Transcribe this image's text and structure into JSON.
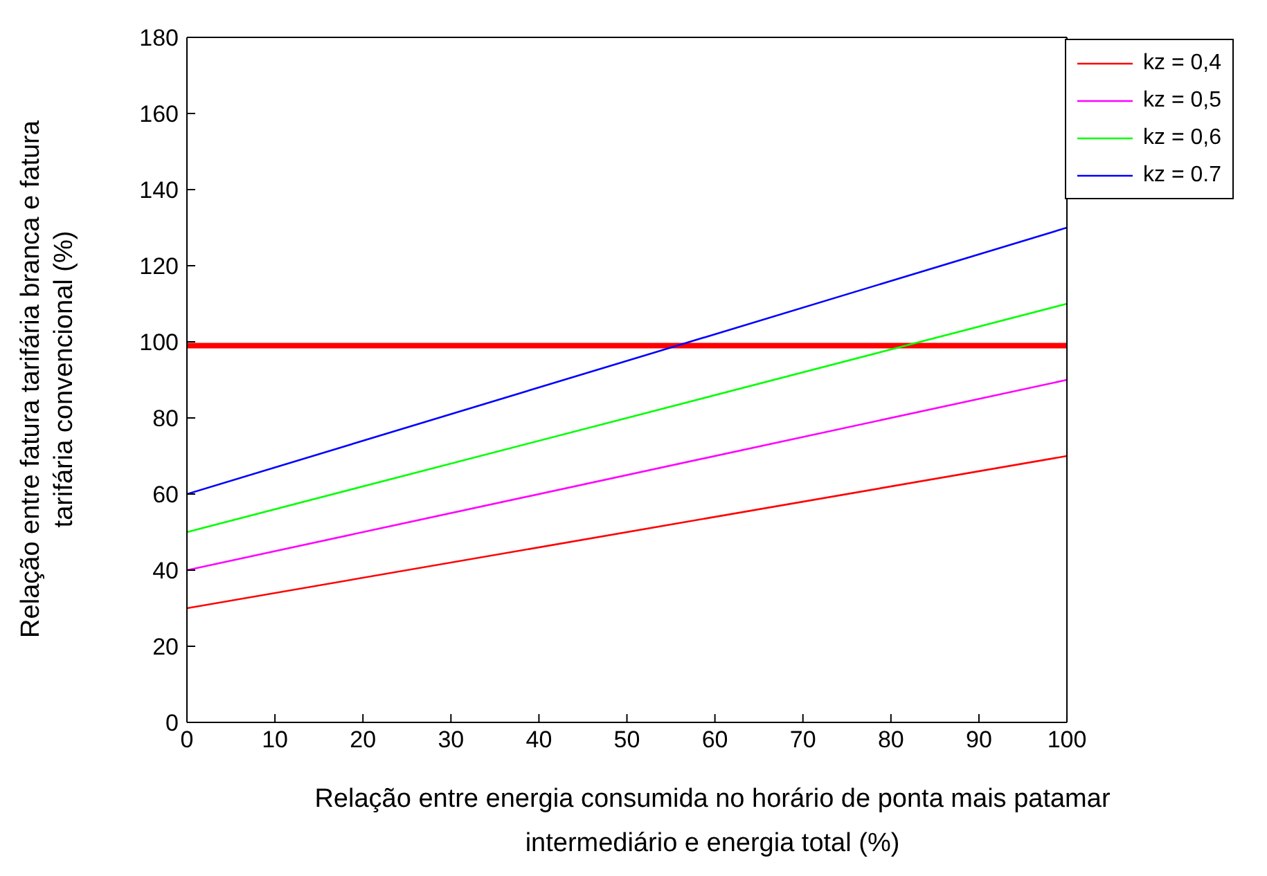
{
  "chart_data": {
    "type": "line",
    "xlabel": "Relação entre energia consumida no horário de ponta mais patamar intermediário e energia total (%)",
    "ylabel": "Relação entre fatura tarifária branca e fatura tarifária convencional (%)",
    "x": [
      0,
      100
    ],
    "series": [
      {
        "name": "kz = 0,4",
        "color": "#ff0000",
        "values": [
          30,
          70
        ]
      },
      {
        "name": "kz = 0,5",
        "color": "#ff00ff",
        "values": [
          40,
          90
        ]
      },
      {
        "name": "kz = 0,6",
        "color": "#00ff00",
        "values": [
          50,
          110
        ]
      },
      {
        "name": "kz = 0.7",
        "color": "#0000ff",
        "values": [
          60,
          130
        ]
      }
    ],
    "ref_lines": [
      {
        "axis": "y",
        "value": 99,
        "color": "#ff0000"
      }
    ],
    "xlim": [
      0,
      100
    ],
    "xticks": [
      0,
      10,
      20,
      30,
      40,
      50,
      60,
      70,
      80,
      90,
      100
    ],
    "ylim": [
      0,
      180
    ],
    "yticks": [
      0,
      20,
      40,
      60,
      80,
      100,
      120,
      140,
      160,
      180
    ],
    "legend": "top right",
    "marker": "none",
    "line_style": "solid"
  }
}
